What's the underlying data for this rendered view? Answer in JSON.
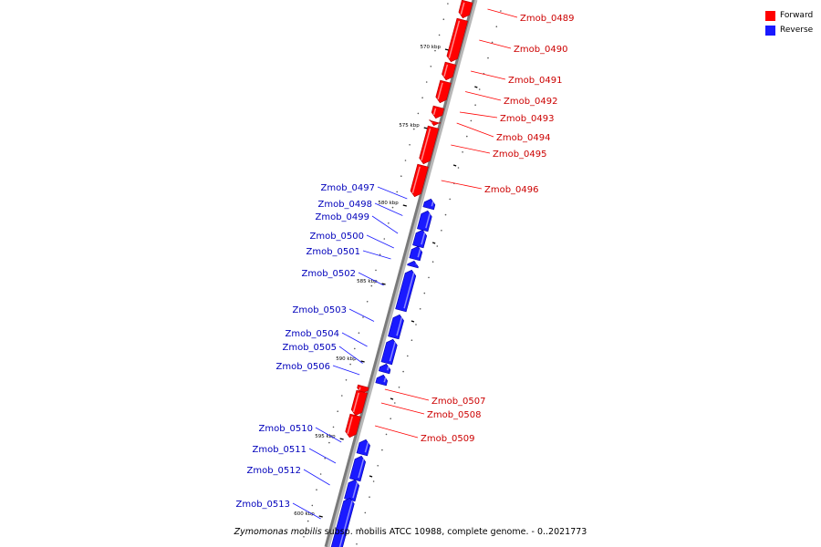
{
  "legend": {
    "forward_label": "Forward",
    "reverse_label": "Reverse",
    "forward_color": "#ff0000",
    "reverse_color": "#1a1aff"
  },
  "caption": {
    "species": "Zymomonas mobilis",
    "rest": " subsp. mobilis ATCC 10988, complete genome. - 0..2021773"
  },
  "scale": {
    "unit": "kbp",
    "ticks": [
      "570 kbp",
      "575 kbp",
      "580 kbp",
      "585 kbp",
      "590 kbp",
      "595 kbp",
      "600 kbp"
    ]
  },
  "genes": [
    {
      "name": "Zmob_0489",
      "strand": "forward"
    },
    {
      "name": "Zmob_0490",
      "strand": "forward"
    },
    {
      "name": "Zmob_0491",
      "strand": "forward"
    },
    {
      "name": "Zmob_0492",
      "strand": "forward"
    },
    {
      "name": "Zmob_0493",
      "strand": "forward"
    },
    {
      "name": "Zmob_0494",
      "strand": "forward"
    },
    {
      "name": "Zmob_0495",
      "strand": "forward"
    },
    {
      "name": "Zmob_0496",
      "strand": "forward"
    },
    {
      "name": "Zmob_0497",
      "strand": "reverse"
    },
    {
      "name": "Zmob_0498",
      "strand": "reverse"
    },
    {
      "name": "Zmob_0499",
      "strand": "reverse"
    },
    {
      "name": "Zmob_0500",
      "strand": "reverse"
    },
    {
      "name": "Zmob_0501",
      "strand": "reverse"
    },
    {
      "name": "Zmob_0502",
      "strand": "reverse"
    },
    {
      "name": "Zmob_0503",
      "strand": "reverse"
    },
    {
      "name": "Zmob_0504",
      "strand": "reverse"
    },
    {
      "name": "Zmob_0505",
      "strand": "reverse"
    },
    {
      "name": "Zmob_0506",
      "strand": "reverse"
    },
    {
      "name": "Zmob_0507",
      "strand": "forward"
    },
    {
      "name": "Zmob_0508",
      "strand": "forward"
    },
    {
      "name": "Zmob_0509",
      "strand": "forward"
    },
    {
      "name": "Zmob_0510",
      "strand": "reverse"
    },
    {
      "name": "Zmob_0511",
      "strand": "reverse"
    },
    {
      "name": "Zmob_0512",
      "strand": "reverse"
    },
    {
      "name": "Zmob_0513",
      "strand": "reverse"
    }
  ]
}
